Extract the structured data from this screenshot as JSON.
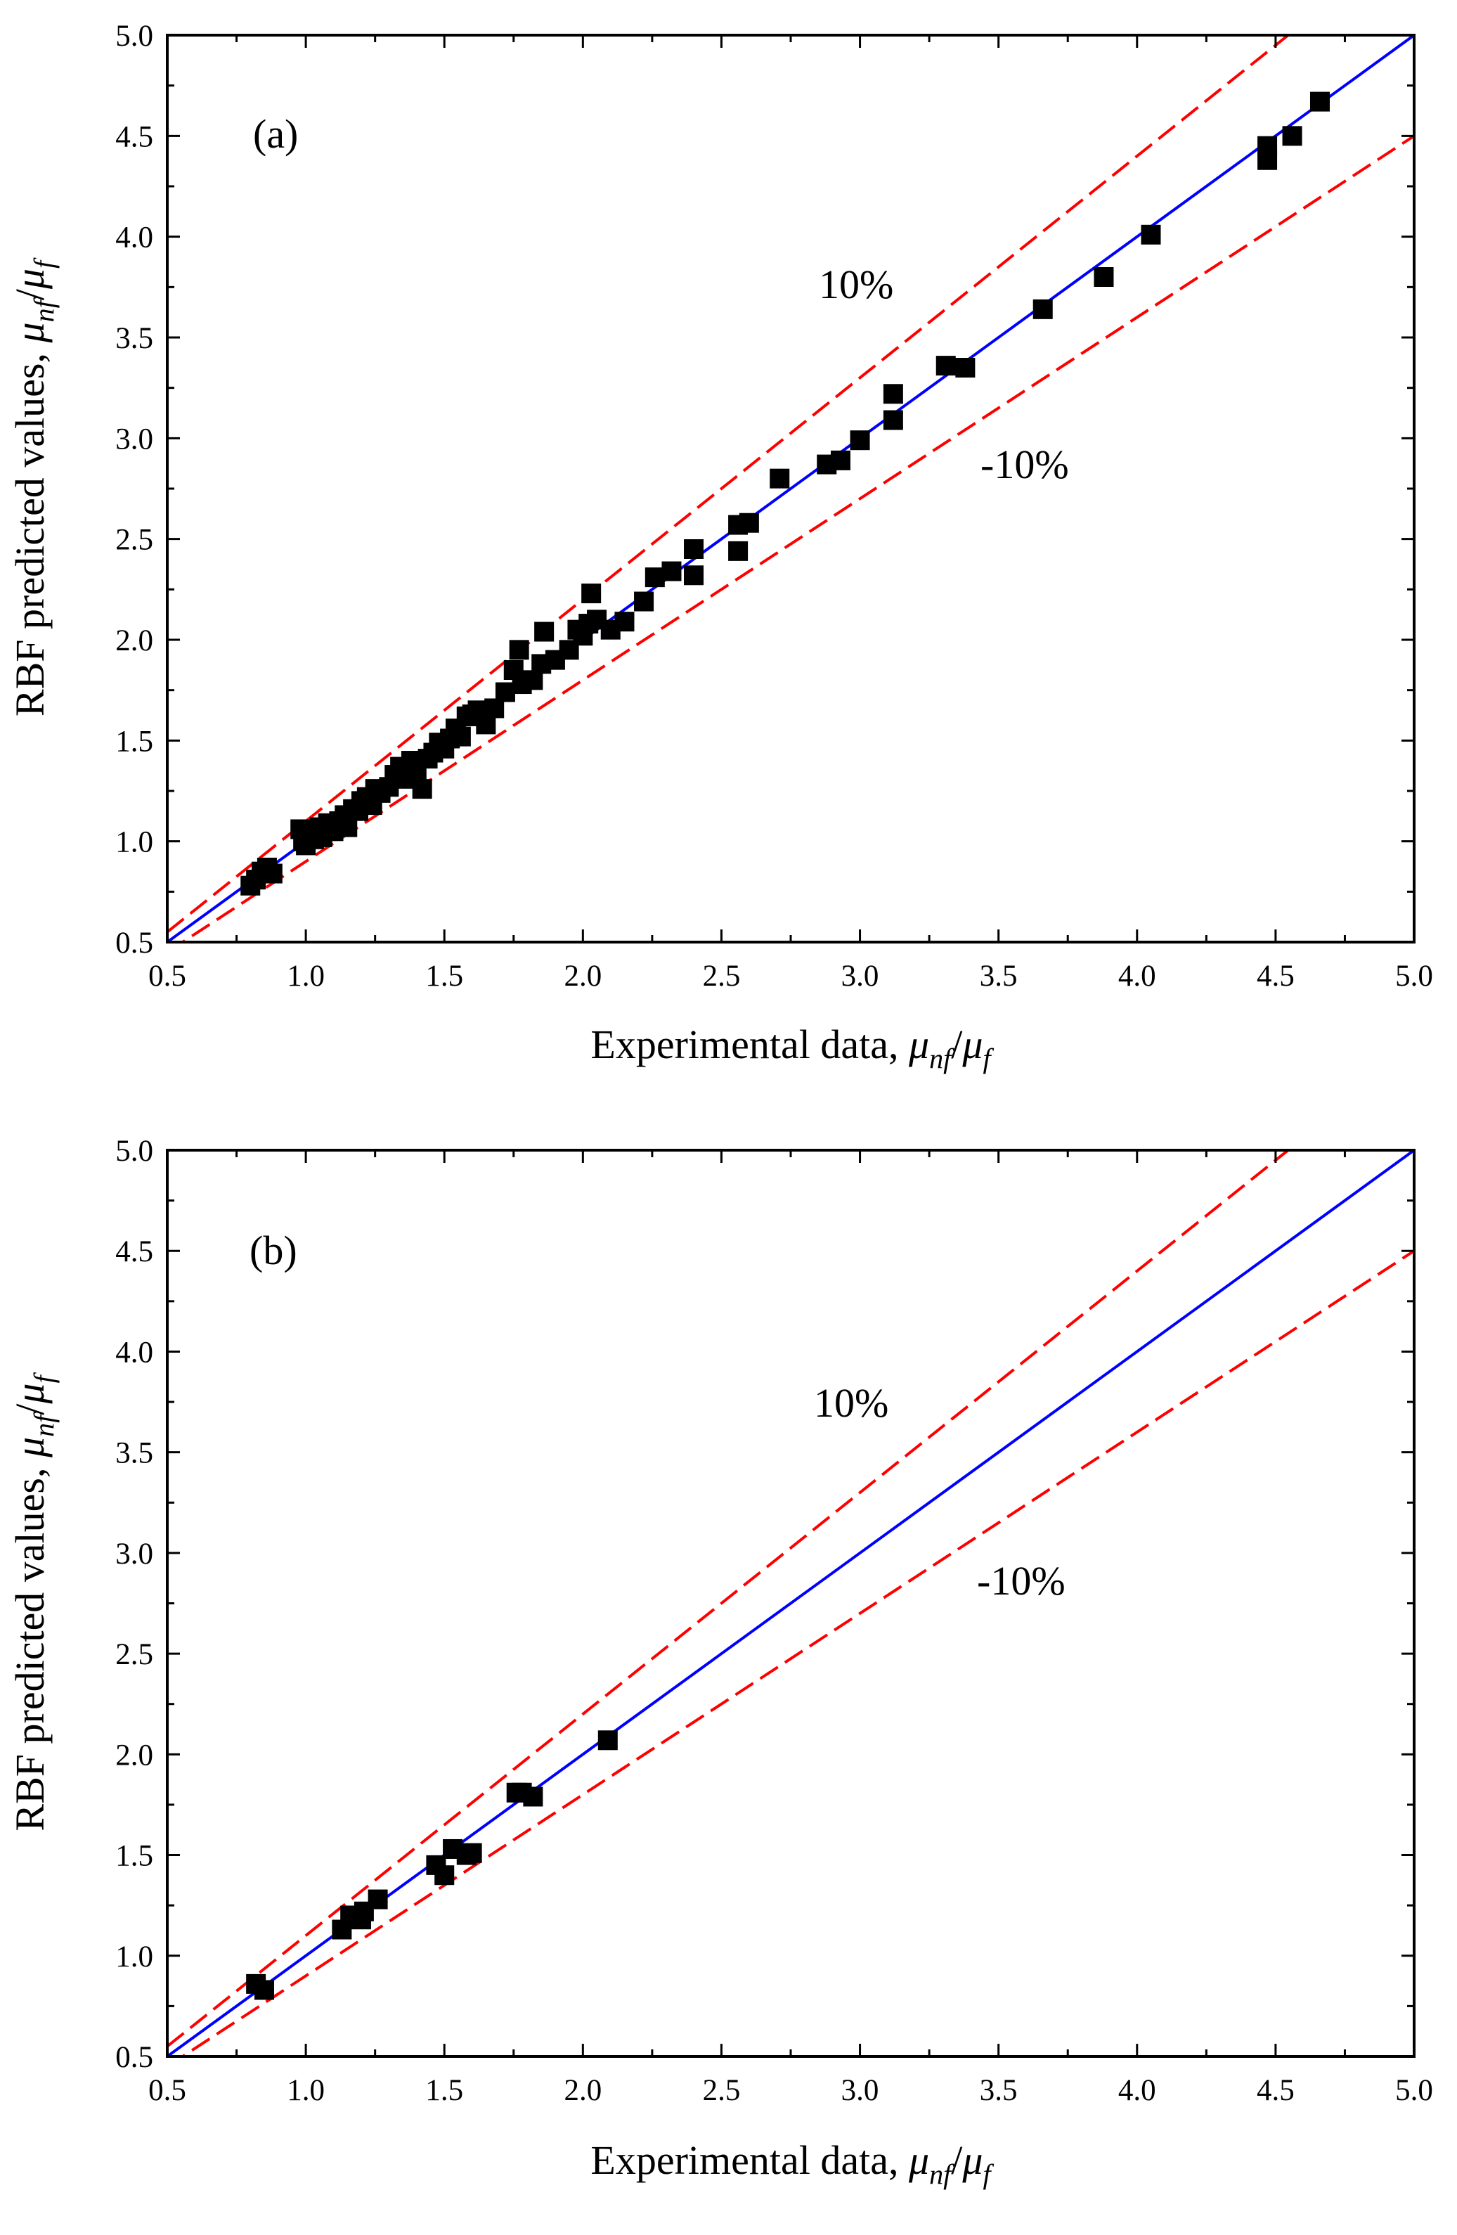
{
  "chart_data": [
    {
      "type": "scatter",
      "panel_label": "(a)",
      "xlabel_prefix": "Experimental data, ",
      "xlabel_mu": "μ",
      "xlabel_sub1": "nf",
      "xlabel_slash": "/",
      "xlabel_sub2": "f",
      "ylabel_prefix": "RBF predicted values, ",
      "ylabel_mu": "μ",
      "ylabel_sub1": "nf",
      "ylabel_slash": "/",
      "ylabel_sub2": "f",
      "xlim": [
        0.5,
        5.0
      ],
      "ylim": [
        0.5,
        5.0
      ],
      "xticks": [
        "0.5",
        "1.0",
        "1.5",
        "2.0",
        "2.5",
        "3.0",
        "3.5",
        "4.0",
        "4.5",
        "5.0"
      ],
      "yticks": [
        "0.5",
        "1.0",
        "1.5",
        "2.0",
        "2.5",
        "3.0",
        "3.5",
        "4.0",
        "4.5",
        "5.0"
      ],
      "annotations": {
        "upper": "10%",
        "lower": "-10%"
      },
      "reference_lines": [
        {
          "kind": "ideal",
          "slope": 1.0,
          "color": "#0000ff",
          "style": "solid"
        },
        {
          "kind": "upper",
          "slope": 1.1,
          "color": "#ff0000",
          "style": "dashed"
        },
        {
          "kind": "lower",
          "slope": 0.9,
          "color": "#ff0000",
          "style": "dashed"
        }
      ],
      "marker_color": "#000000",
      "points": [
        [
          0.8,
          0.78
        ],
        [
          0.82,
          0.81
        ],
        [
          0.84,
          0.85
        ],
        [
          0.86,
          0.87
        ],
        [
          0.88,
          0.84
        ],
        [
          0.98,
          1.06
        ],
        [
          0.99,
          1.0
        ],
        [
          1.0,
          0.98
        ],
        [
          1.01,
          1.03
        ],
        [
          1.02,
          1.05
        ],
        [
          1.03,
          1.01
        ],
        [
          1.05,
          1.07
        ],
        [
          1.06,
          1.02
        ],
        [
          1.08,
          1.09
        ],
        [
          1.1,
          1.05
        ],
        [
          1.12,
          1.1
        ],
        [
          1.14,
          1.13
        ],
        [
          1.15,
          1.07
        ],
        [
          1.17,
          1.16
        ],
        [
          1.19,
          1.15
        ],
        [
          1.2,
          1.2
        ],
        [
          1.22,
          1.22
        ],
        [
          1.24,
          1.18
        ],
        [
          1.25,
          1.26
        ],
        [
          1.27,
          1.24
        ],
        [
          1.3,
          1.27
        ],
        [
          1.32,
          1.33
        ],
        [
          1.34,
          1.37
        ],
        [
          1.36,
          1.31
        ],
        [
          1.38,
          1.4
        ],
        [
          1.4,
          1.35
        ],
        [
          1.42,
          1.26
        ],
        [
          1.44,
          1.41
        ],
        [
          1.46,
          1.44
        ],
        [
          1.48,
          1.49
        ],
        [
          1.5,
          1.46
        ],
        [
          1.52,
          1.51
        ],
        [
          1.54,
          1.56
        ],
        [
          1.56,
          1.52
        ],
        [
          1.58,
          1.62
        ],
        [
          1.6,
          1.63
        ],
        [
          1.62,
          1.65
        ],
        [
          1.65,
          1.58
        ],
        [
          1.68,
          1.66
        ],
        [
          1.72,
          1.74
        ],
        [
          1.75,
          1.85
        ],
        [
          1.77,
          1.95
        ],
        [
          1.78,
          1.78
        ],
        [
          1.82,
          1.8
        ],
        [
          1.85,
          1.88
        ],
        [
          1.86,
          2.04
        ],
        [
          1.9,
          1.9
        ],
        [
          1.95,
          1.95
        ],
        [
          1.98,
          2.05
        ],
        [
          2.0,
          2.02
        ],
        [
          2.02,
          2.08
        ],
        [
          2.03,
          2.23
        ],
        [
          2.05,
          2.1
        ],
        [
          2.1,
          2.05
        ],
        [
          2.15,
          2.09
        ],
        [
          2.22,
          2.19
        ],
        [
          2.26,
          2.31
        ],
        [
          2.32,
          2.34
        ],
        [
          2.4,
          2.32
        ],
        [
          2.4,
          2.45
        ],
        [
          2.56,
          2.44
        ],
        [
          2.56,
          2.57
        ],
        [
          2.6,
          2.58
        ],
        [
          2.71,
          2.8
        ],
        [
          2.88,
          2.87
        ],
        [
          2.93,
          2.89
        ],
        [
          3.0,
          2.99
        ],
        [
          3.12,
          3.09
        ],
        [
          3.12,
          3.22
        ],
        [
          3.31,
          3.36
        ],
        [
          3.38,
          3.35
        ],
        [
          3.66,
          3.64
        ],
        [
          3.88,
          3.8
        ],
        [
          4.05,
          4.01
        ],
        [
          4.47,
          4.38
        ],
        [
          4.47,
          4.45
        ],
        [
          4.56,
          4.5
        ],
        [
          4.66,
          4.67
        ]
      ]
    },
    {
      "type": "scatter",
      "panel_label": "(b)",
      "xlabel_prefix": "Experimental data, ",
      "xlabel_mu": "μ",
      "xlabel_sub1": "nf",
      "xlabel_slash": "/",
      "xlabel_sub2": "f",
      "ylabel_prefix": "RBF predicted values, ",
      "ylabel_mu": "μ",
      "ylabel_sub1": "nf",
      "ylabel_slash": "/",
      "ylabel_sub2": "f",
      "xlim": [
        0.5,
        5.0
      ],
      "ylim": [
        0.5,
        5.0
      ],
      "xticks": [
        "0.5",
        "1.0",
        "1.5",
        "2.0",
        "2.5",
        "3.0",
        "3.5",
        "4.0",
        "4.5",
        "5.0"
      ],
      "yticks": [
        "0.5",
        "1.0",
        "1.5",
        "2.0",
        "2.5",
        "3.0",
        "3.5",
        "4.0",
        "4.5",
        "5.0"
      ],
      "annotations": {
        "upper": "10%",
        "lower": "-10%"
      },
      "reference_lines": [
        {
          "kind": "ideal",
          "slope": 1.0,
          "color": "#0000ff",
          "style": "solid"
        },
        {
          "kind": "upper",
          "slope": 1.1,
          "color": "#ff0000",
          "style": "dashed"
        },
        {
          "kind": "lower",
          "slope": 0.9,
          "color": "#ff0000",
          "style": "dashed"
        }
      ],
      "marker_color": "#000000",
      "points": [
        [
          0.82,
          0.86
        ],
        [
          0.85,
          0.83
        ],
        [
          1.13,
          1.13
        ],
        [
          1.16,
          1.2
        ],
        [
          1.2,
          1.18
        ],
        [
          1.21,
          1.22
        ],
        [
          1.26,
          1.28
        ],
        [
          1.47,
          1.45
        ],
        [
          1.5,
          1.4
        ],
        [
          1.53,
          1.53
        ],
        [
          1.58,
          1.5
        ],
        [
          1.6,
          1.51
        ],
        [
          1.76,
          1.81
        ],
        [
          1.78,
          1.81
        ],
        [
          1.82,
          1.79
        ],
        [
          2.09,
          2.07
        ]
      ]
    }
  ]
}
